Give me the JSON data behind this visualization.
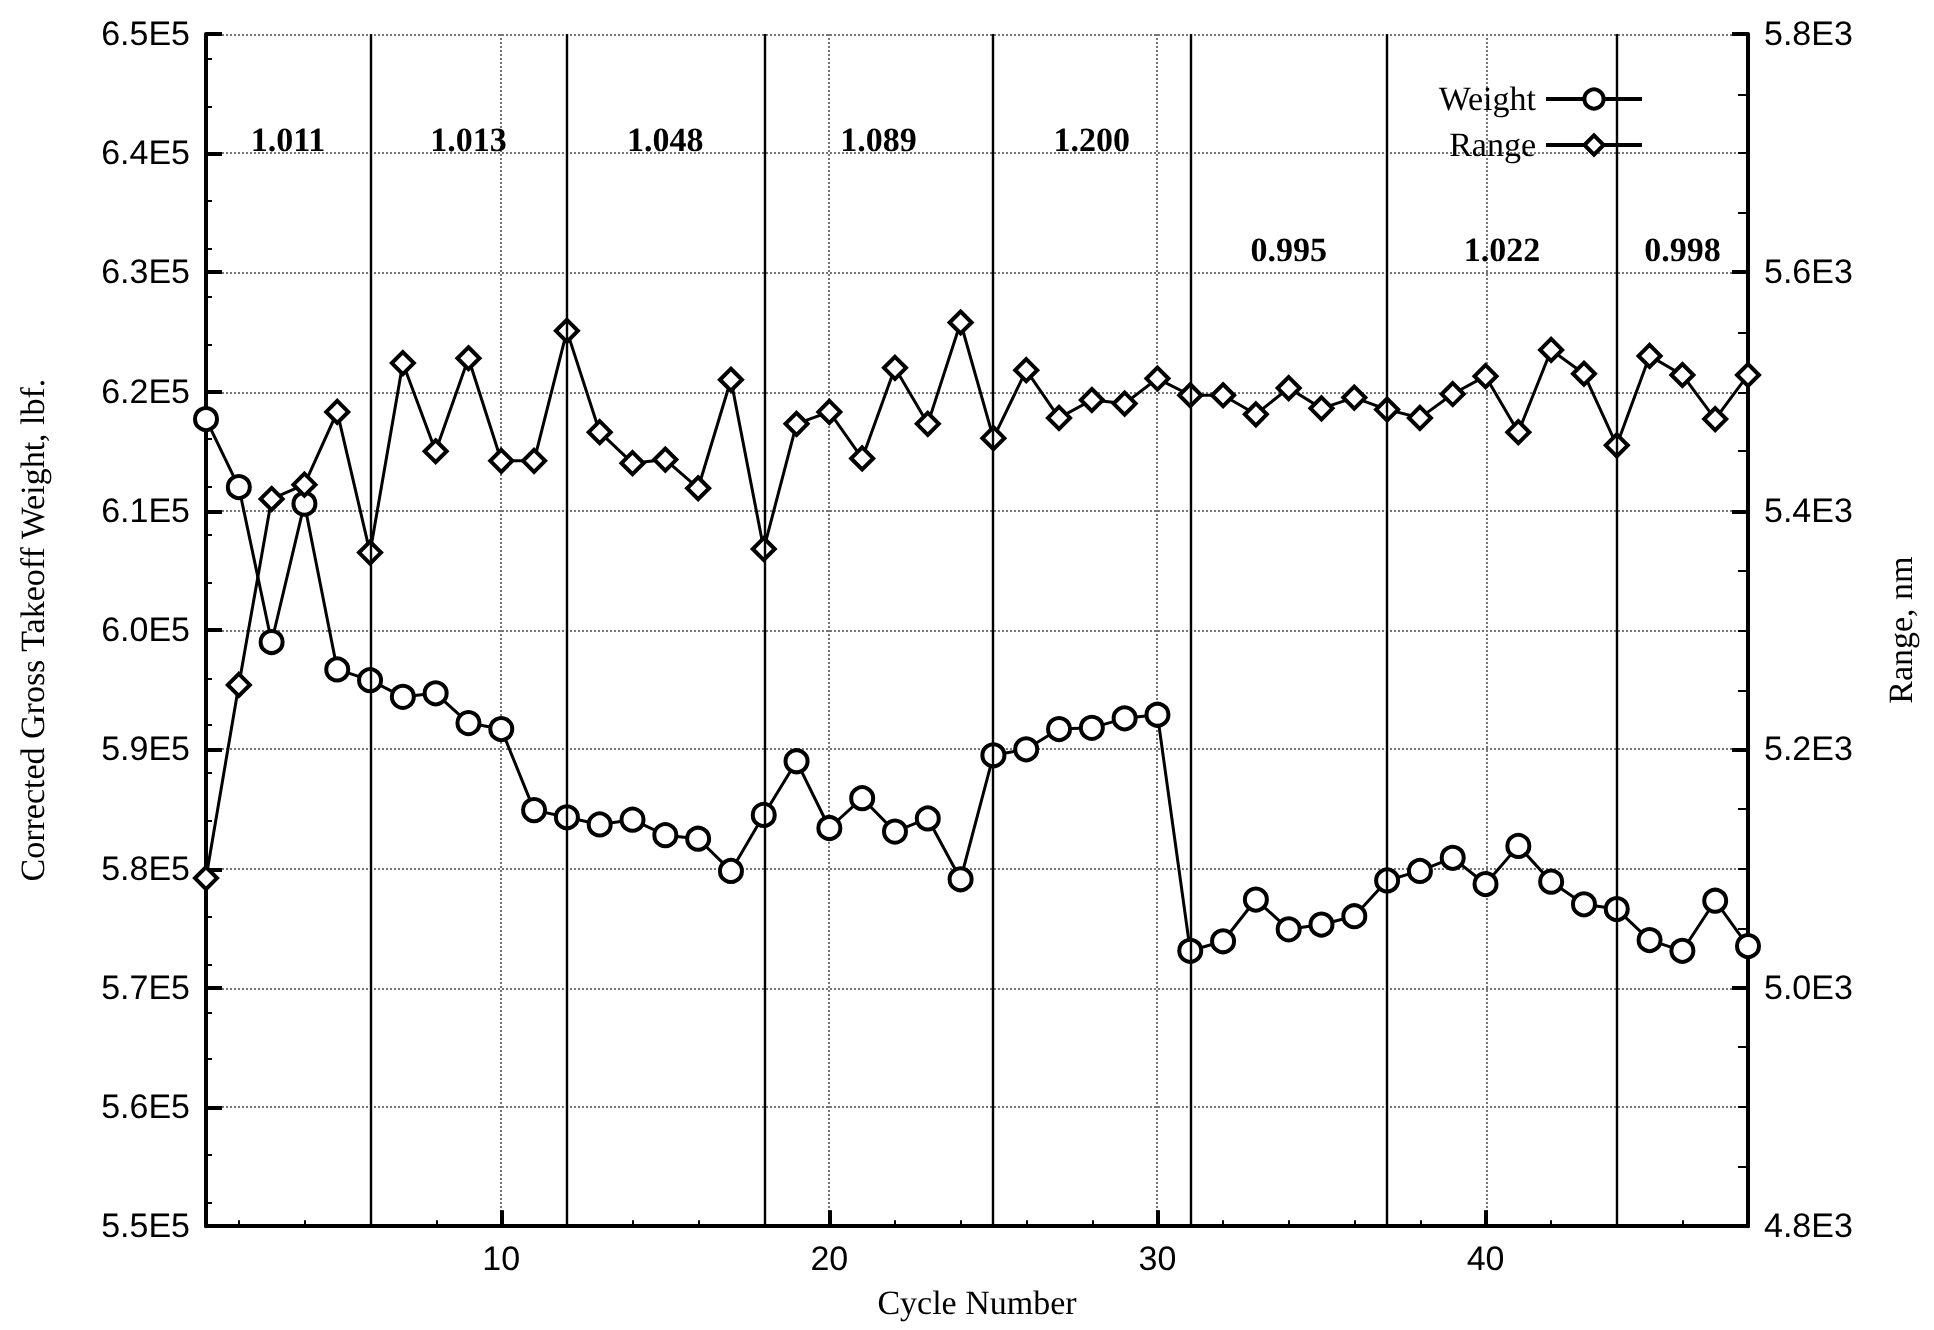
{
  "chart_data": {
    "type": "line",
    "xlabel": "Cycle Number",
    "ylabel": "Corrected Gross Takeoff Weight, lbf.",
    "y2label": "Range, nm",
    "x": [
      1,
      2,
      3,
      4,
      5,
      6,
      7,
      8,
      9,
      10,
      11,
      12,
      13,
      14,
      15,
      16,
      17,
      18,
      19,
      20,
      21,
      22,
      23,
      24,
      25,
      26,
      27,
      28,
      29,
      30,
      31,
      32,
      33,
      34,
      35,
      36,
      37,
      38,
      39,
      40,
      41,
      42,
      43,
      44,
      45,
      46,
      47,
      48
    ],
    "series": [
      {
        "name": "Weight",
        "color": "#000000",
        "marker": "circle",
        "values": [
          617700,
          612000,
          599000,
          610600,
          596700,
          595800,
          594400,
          594700,
          592200,
          591700,
          584900,
          584300,
          583700,
          584100,
          582800,
          582500,
          579800,
          584500,
          589000,
          583400,
          585900,
          583100,
          584200,
          579100,
          589500,
          590000,
          591700,
          591800,
          592600,
          592900,
          573100,
          573900,
          577400,
          574900,
          575300,
          576000,
          579000,
          579800,
          580900,
          578700,
          581900,
          578900,
          577000,
          576600,
          574000,
          573100,
          577300,
          573500
        ]
      },
      {
        "name": "Range",
        "color": "#000000",
        "marker": "diamond",
        "axis": "y2",
        "values": [
          5092,
          5254,
          5410,
          5422,
          5483,
          5365,
          5524,
          5450,
          5528,
          5442,
          5442,
          5551,
          5466,
          5440,
          5443,
          5419,
          5510,
          5368,
          5473,
          5483,
          5444,
          5520,
          5473,
          5558,
          5461,
          5518,
          5478,
          5493,
          5490,
          5511,
          5497,
          5497,
          5481,
          5503,
          5486,
          5495,
          5485,
          5478,
          5498,
          5513,
          5466,
          5535,
          5515,
          5455,
          5530,
          5514,
          5477,
          5514
        ]
      }
    ],
    "xlim": [
      1,
      48
    ],
    "xticks": [
      10,
      20,
      30,
      40
    ],
    "ylim": [
      550000,
      650000
    ],
    "yticks": [
      {
        "value": 550000,
        "label": "5.5E5"
      },
      {
        "value": 560000,
        "label": "5.6E5"
      },
      {
        "value": 570000,
        "label": "5.7E5"
      },
      {
        "value": 580000,
        "label": "5.8E5"
      },
      {
        "value": 590000,
        "label": "5.9E5"
      },
      {
        "value": 600000,
        "label": "6.0E5"
      },
      {
        "value": 610000,
        "label": "6.1E5"
      },
      {
        "value": 620000,
        "label": "6.2E5"
      },
      {
        "value": 630000,
        "label": "6.3E5"
      },
      {
        "value": 640000,
        "label": "6.4E5"
      },
      {
        "value": 650000,
        "label": "6.5E5"
      }
    ],
    "y2lim": [
      4800,
      5800
    ],
    "y2ticks": [
      {
        "value": 4800,
        "label": "4.8E3"
      },
      {
        "value": 5000,
        "label": "5.0E3"
      },
      {
        "value": 5200,
        "label": "5.2E3"
      },
      {
        "value": 5400,
        "label": "5.4E3"
      },
      {
        "value": 5600,
        "label": "5.6E3"
      },
      {
        "value": 5800,
        "label": "5.8E3"
      }
    ],
    "ref_lines": [
      {
        "axis": "x",
        "value": 6
      },
      {
        "axis": "x",
        "value": 12
      },
      {
        "axis": "x",
        "value": 18
      },
      {
        "axis": "x",
        "value": 25
      },
      {
        "axis": "x",
        "value": 31
      },
      {
        "axis": "x",
        "value": 37
      },
      {
        "axis": "x",
        "value": 44
      }
    ],
    "annotations": [
      "1.011",
      "1.013",
      "1.048",
      "1.089",
      "1.200",
      "0.995",
      "1.022",
      "0.998"
    ],
    "grid": true,
    "legend": "top right",
    "line_style": "solid"
  }
}
